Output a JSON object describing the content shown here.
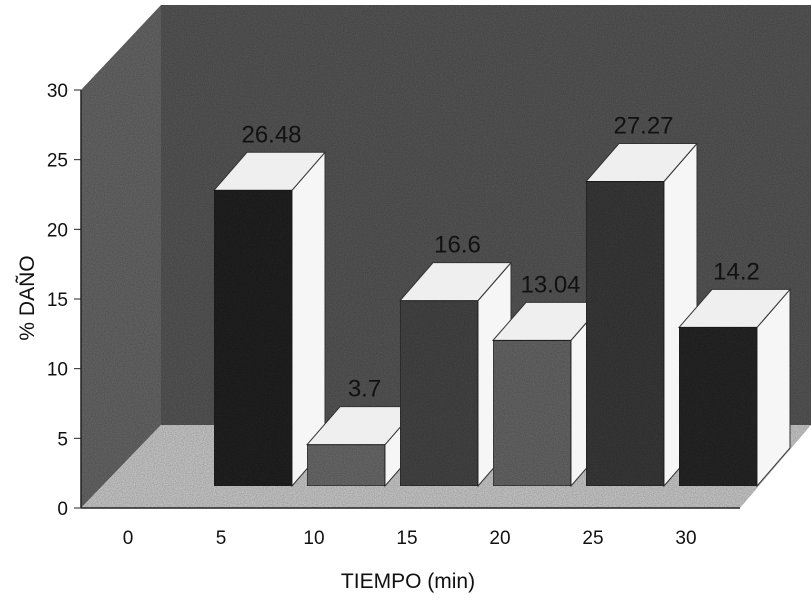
{
  "chart_data": {
    "type": "bar",
    "style": "3d",
    "categories": [
      "0",
      "5",
      "10",
      "15",
      "20",
      "25",
      "30"
    ],
    "values": [
      0,
      26.48,
      3.7,
      16.6,
      13.04,
      27.27,
      14.2
    ],
    "data_labels": [
      "",
      "26.48",
      "3.7",
      "16.6",
      "13.04",
      "27.27",
      "14.2"
    ],
    "xlabel": "TIEMPO (min)",
    "ylabel": "% DAÑO",
    "ylim": [
      0,
      30
    ],
    "yticks": [
      "0",
      "5",
      "10",
      "15",
      "20",
      "25",
      "30"
    ],
    "grid": false,
    "legend": "none"
  },
  "colors": {
    "background_wall": "#5a5a5a",
    "floor": "#cfcfcf",
    "bar_front": [
      "#3a3a3a",
      "#262626",
      "#6e6e6e",
      "#4a4a4a",
      "#6a6a6a",
      "#3e3e3e",
      "#2a2a2a"
    ],
    "bar_top": "#efefef",
    "bar_side": "#f6f6f6"
  }
}
